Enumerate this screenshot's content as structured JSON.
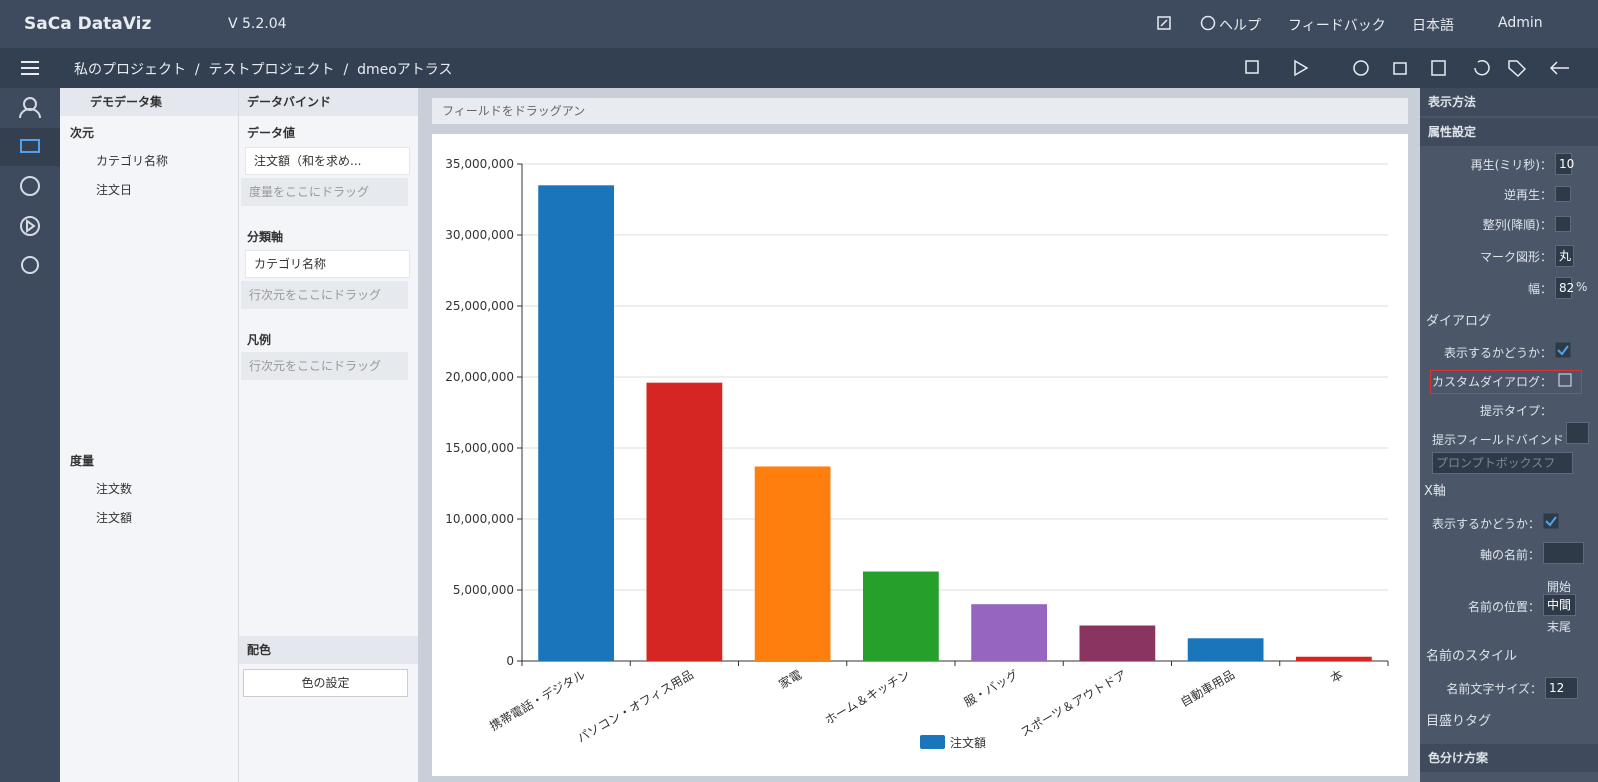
{
  "header": {
    "logo": "SaCa DataViz",
    "version": "V 5.2.04",
    "help": "ヘルプ",
    "feedback": "フィードバック",
    "language": "日本語",
    "user": "Admin"
  },
  "breadcrumb": {
    "items": [
      "私のプロジェクト",
      "テストプロジェクト",
      "dmeoアトラス"
    ],
    "separator": "/"
  },
  "dataset_panel": {
    "title": "デモデータ集",
    "dimensions_label": "次元",
    "dimensions": [
      "カテゴリ名称",
      "注文日"
    ],
    "measures_label": "度量",
    "measures": [
      "注文数",
      "注文額"
    ]
  },
  "binding_panel": {
    "title": "データバインド",
    "value_label": "データ値",
    "value_field": "注文額（和を求め...",
    "value_placeholder": "度量をここにドラッグ",
    "axis_label": "分類軸",
    "axis_field": "カテゴリ名称",
    "axis_placeholder": "行次元をここにドラッグ",
    "legend_label": "凡例",
    "legend_placeholder": "行次元をここにドラッグ",
    "color_label": "配色",
    "color_button": "色の設定"
  },
  "drop_hint": "フィールドをドラッグアン",
  "chart_data": {
    "type": "bar",
    "categories": [
      "携帯電話・デジタル",
      "パソコン・オフィス用品",
      "家電",
      "ホーム＆キッチン",
      "服・バッグ",
      "スポーツ＆アウトドア",
      "自動車用品",
      "本"
    ],
    "series": [
      {
        "name": "注文額",
        "color": "#1a75bb",
        "colors": [
          "#1a75bb",
          "#d62621",
          "#ff7f0e",
          "#27a02b",
          "#9565bf",
          "#8a3561",
          "#1a75bb",
          "#d62621"
        ],
        "values": [
          33500000,
          19600000,
          13700000,
          6300000,
          4000000,
          2500000,
          1600000,
          300000
        ]
      }
    ],
    "ylim": [
      0,
      35000000
    ],
    "yticks": [
      0,
      {
        "value": 5000000,
        "label": "5,000,000"
      },
      {
        "value": 10000000,
        "label": "10,000,000"
      },
      {
        "value": 15000000,
        "label": "15,000,000"
      },
      {
        "value": 20000000,
        "label": "20,000,000"
      },
      {
        "value": 25000000,
        "label": "25,000,000"
      },
      {
        "value": 30000000,
        "label": "30,000,000"
      },
      {
        "value": 35000000,
        "label": "35,000,000"
      }
    ],
    "grid": true,
    "legend": "bottom"
  },
  "settings_panel": {
    "display_method": "表示方法",
    "attributes": "属性設定",
    "playback": "再生(ミリ秒)：",
    "playback_value": "10",
    "reverse": "逆再生：",
    "sort_desc": "整列(降順)：",
    "marker": "マーク図形：",
    "marker_value": "丸",
    "width": "幅：",
    "width_value": "82",
    "width_unit": "%",
    "dialog": "ダイアログ",
    "dialog_show": "表示するかどうか：",
    "custom_dialog": "カスタムダイアログ：",
    "tip_type": "提示タイプ：",
    "tip_field": "提示フィールドバインド",
    "tip_box": "プロンプトボックスフ",
    "x_axis": "X軸",
    "x_show": "表示するかどうか：",
    "axis_name": "軸の名前：",
    "name_position": "名前の位置：",
    "pos_start": "開始",
    "pos_middle": "中間",
    "pos_end": "末尾",
    "name_style": "名前のスタイル",
    "name_font_size": "名前文字サイズ：",
    "name_font_size_value": "12",
    "tick_tag": "目盛りタグ",
    "color_scheme": "色分け方案"
  }
}
